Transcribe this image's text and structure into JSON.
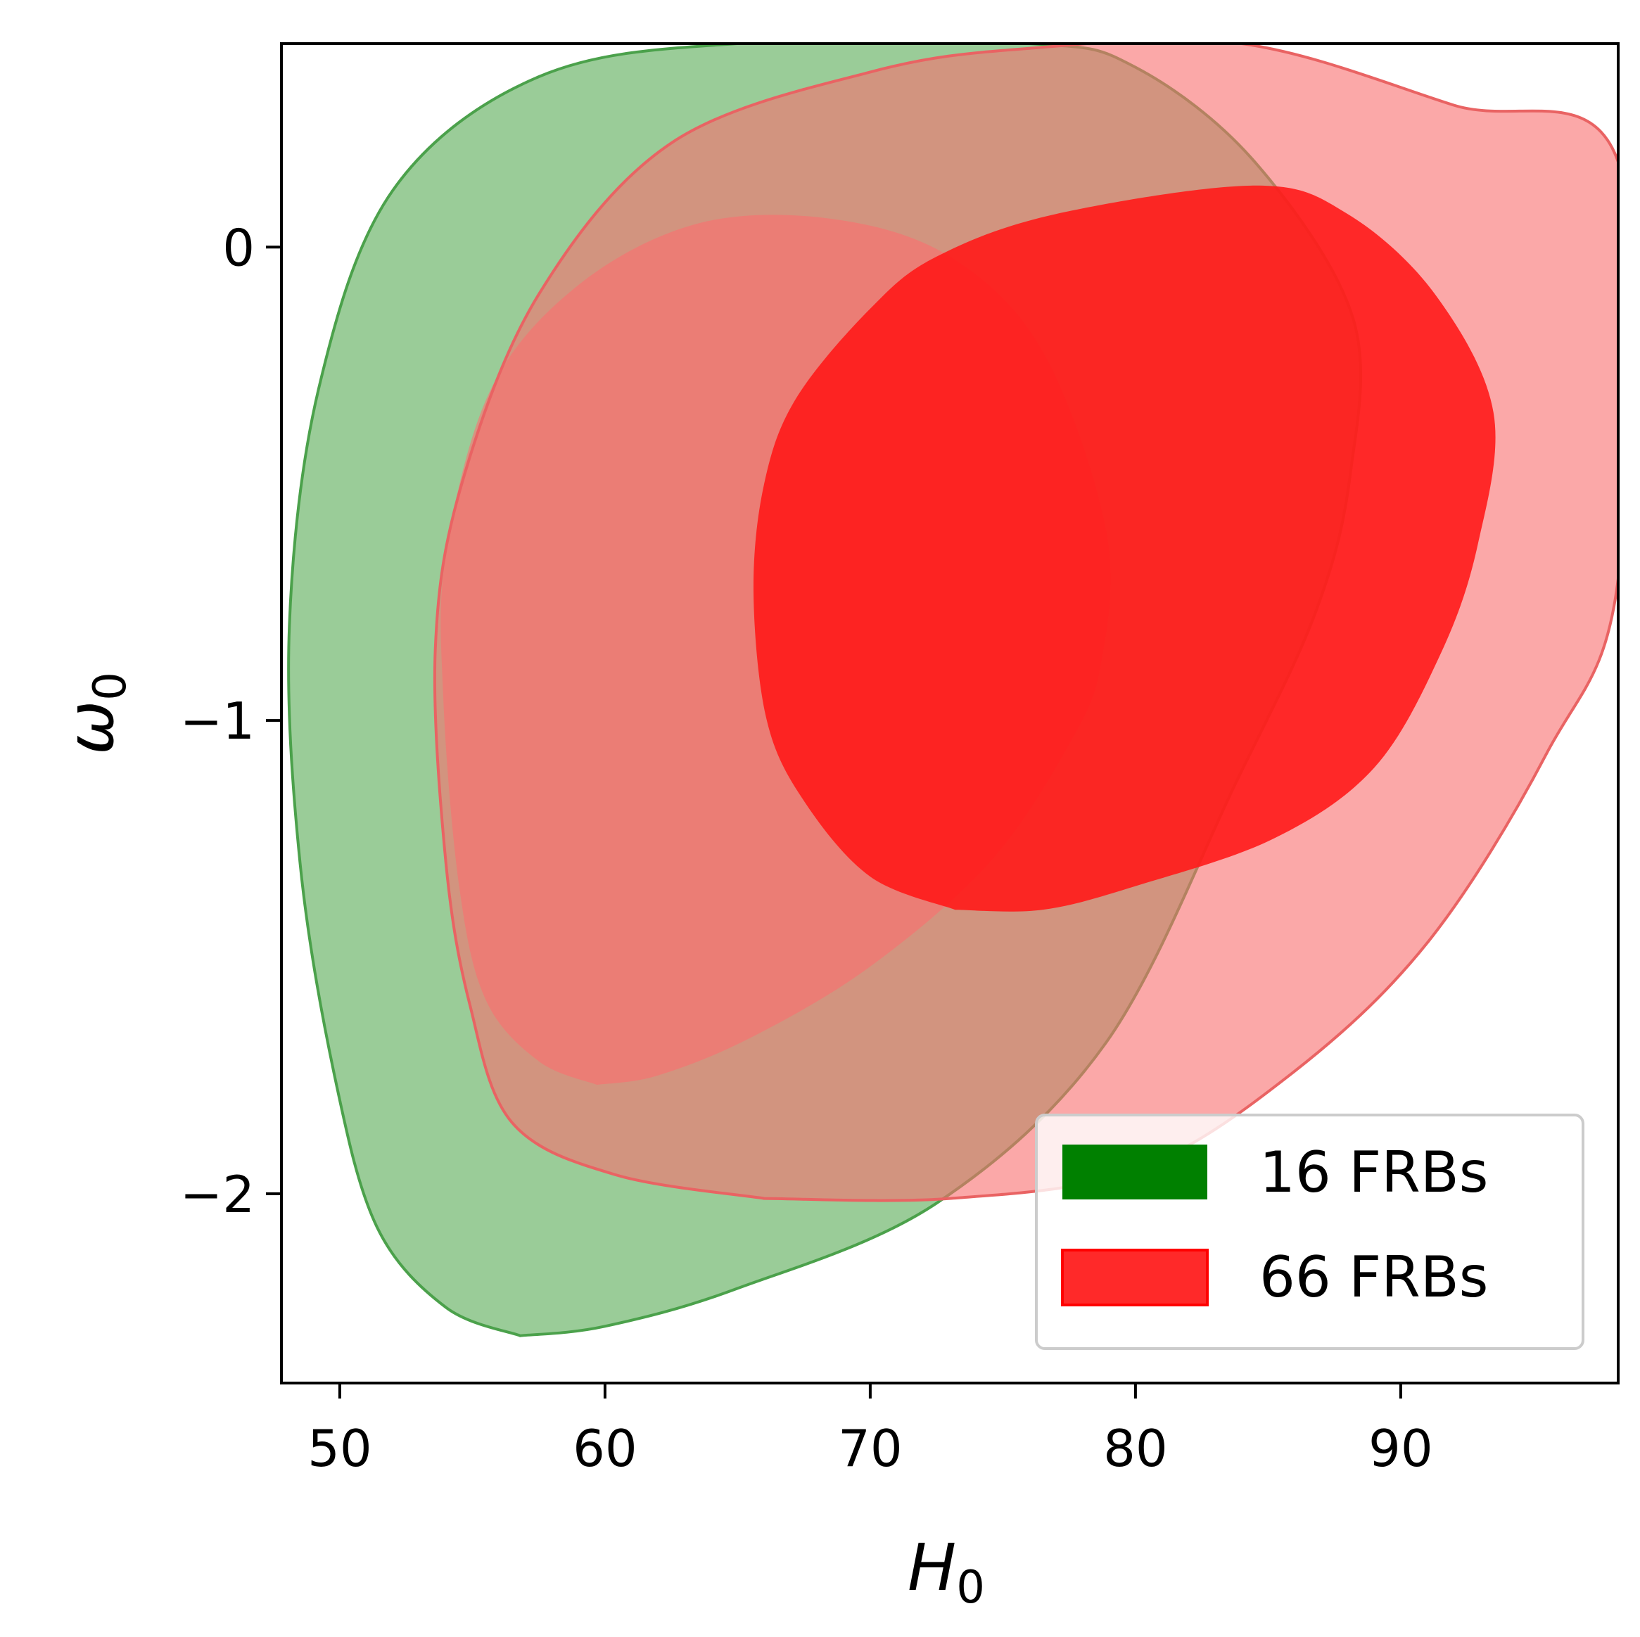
{
  "chart_data": {
    "type": "contour",
    "xlabel": "H",
    "xlabel_sub": "0",
    "ylabel": "ω",
    "ylabel_sub": "0",
    "xlim": [
      47.8,
      98.2
    ],
    "ylim": [
      -2.4,
      0.43
    ],
    "xticks": [
      50,
      60,
      70,
      80,
      90
    ],
    "xtick_labels": [
      "50",
      "60",
      "70",
      "80",
      "90"
    ],
    "yticks": [
      0,
      -1,
      -2
    ],
    "ytick_labels": [
      "0",
      "−1",
      "−2"
    ],
    "legend_position": "lower-right",
    "series": [
      {
        "name": "16 FRBs",
        "color": "#008000",
        "legend_label": "16 FRBs",
        "levels": [
          {
            "level": "outer",
            "fill": "#9acc98",
            "stroke": "#4ba14b",
            "points": [
              [
                56.8,
                -2.3
              ],
              [
                54,
                -2.24
              ],
              [
                51.4,
                -2.07
              ],
              [
                49.8,
                -1.75
              ],
              [
                48.5,
                -1.3
              ],
              [
                48.1,
                -0.8
              ],
              [
                49.2,
                -0.3
              ],
              [
                52,
                0.12
              ],
              [
                57.5,
                0.36
              ],
              [
                65,
                0.43
              ],
              [
                76,
                0.43
              ],
              [
                80,
                0.38
              ],
              [
                84.5,
                0.18
              ],
              [
                88.2,
                -0.15
              ],
              [
                88.1,
                -0.48
              ],
              [
                86.8,
                -0.77
              ],
              [
                83.8,
                -1.13
              ],
              [
                78.9,
                -1.68
              ],
              [
                72.5,
                -2.02
              ],
              [
                65,
                -2.2
              ],
              [
                60,
                -2.28
              ],
              [
                56.8,
                -2.3
              ]
            ]
          },
          {
            "level": "inner",
            "fill": "#d79481",
            "stroke": "none",
            "points": [
              [
                59.7,
                -1.77
              ],
              [
                57.5,
                -1.72
              ],
              [
                55.5,
                -1.59
              ],
              [
                54.5,
                -1.35
              ],
              [
                53.9,
                -0.95
              ],
              [
                54,
                -0.65
              ],
              [
                55.7,
                -0.3
              ],
              [
                59,
                -0.08
              ],
              [
                63.5,
                0.05
              ],
              [
                68.5,
                0.06
              ],
              [
                73,
                -0.02
              ],
              [
                76.5,
                -0.22
              ],
              [
                78.9,
                -0.6
              ],
              [
                78.7,
                -0.88
              ],
              [
                77.5,
                -1.05
              ],
              [
                74.5,
                -1.3
              ],
              [
                70,
                -1.52
              ],
              [
                65.5,
                -1.67
              ],
              [
                62,
                -1.75
              ],
              [
                59.7,
                -1.77
              ]
            ]
          }
        ]
      },
      {
        "name": "66 FRBs",
        "color": "#ff2929",
        "legend_label": "66 FRBs",
        "levels": [
          {
            "level": "outer",
            "fill": "rgba(249,110,110,0.6)",
            "stroke": "#e96363",
            "points": [
              [
                66,
                -2.01
              ],
              [
                60.4,
                -1.96
              ],
              [
                56.5,
                -1.85
              ],
              [
                54.9,
                -1.6
              ],
              [
                54,
                -1.3
              ],
              [
                53.6,
                -0.85
              ],
              [
                54.6,
                -0.5
              ],
              [
                57.5,
                -0.1
              ],
              [
                62.5,
                0.22
              ],
              [
                70,
                0.37
              ],
              [
                76,
                0.42
              ],
              [
                84,
                0.43
              ],
              [
                92,
                0.3
              ],
              [
                98.2,
                0.18
              ],
              [
                98.2,
                -0.7
              ],
              [
                95.5,
                -1.07
              ],
              [
                91,
                -1.47
              ],
              [
                85.8,
                -1.75
              ],
              [
                80,
                -1.95
              ],
              [
                73,
                -2.01
              ],
              [
                66,
                -2.01
              ]
            ]
          },
          {
            "level": "inner",
            "fill": "rgba(255,26,26,0.9)",
            "stroke": "none",
            "points": [
              [
                73.2,
                -1.4
              ],
              [
                70,
                -1.33
              ],
              [
                67.5,
                -1.17
              ],
              [
                66.1,
                -1.0
              ],
              [
                65.6,
                -0.73
              ],
              [
                66,
                -0.5
              ],
              [
                67.2,
                -0.32
              ],
              [
                70,
                -0.13
              ],
              [
                72.5,
                -0.02
              ],
              [
                77,
                0.07
              ],
              [
                84.5,
                0.13
              ],
              [
                88,
                0.07
              ],
              [
                91.3,
                -0.1
              ],
              [
                93.5,
                -0.35
              ],
              [
                92.9,
                -0.63
              ],
              [
                91.5,
                -0.86
              ],
              [
                89,
                -1.1
              ],
              [
                85.2,
                -1.25
              ],
              [
                80,
                -1.35
              ],
              [
                76.5,
                -1.4
              ],
              [
                73.2,
                -1.4
              ]
            ]
          }
        ]
      }
    ]
  }
}
